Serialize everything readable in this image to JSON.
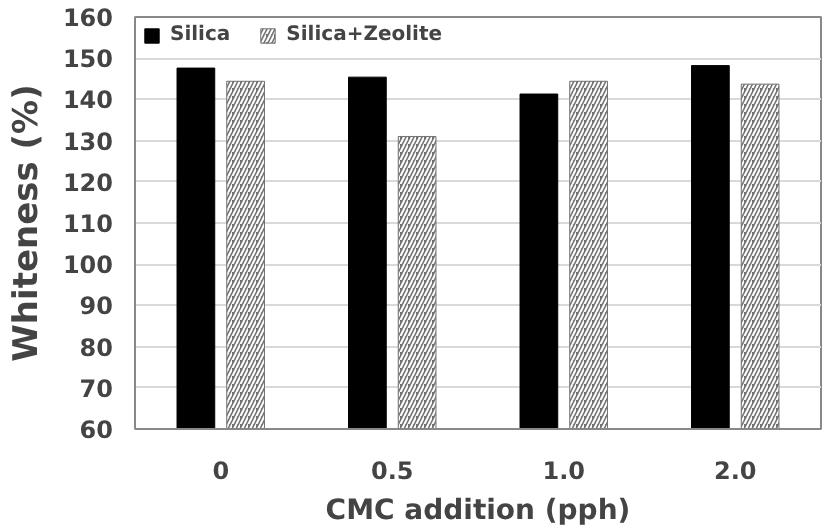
{
  "chart_data": {
    "type": "bar",
    "xlabel": "CMC addition (pph)",
    "ylabel": "Whiteness (%)",
    "categories": [
      "0",
      "0.5",
      "1.0",
      "2.0"
    ],
    "series": [
      {
        "name": "Silica",
        "color": "#000000",
        "values": [
          147.6,
          145.4,
          141.3,
          148.2
        ]
      },
      {
        "name": "Silica+Zeolite",
        "color": "#737373",
        "values": [
          144.4,
          131,
          144.4,
          143.7
        ]
      }
    ],
    "ylim": [
      60,
      160
    ],
    "yticks": [
      60,
      70,
      80,
      90,
      100,
      110,
      120,
      130,
      140,
      150,
      160
    ],
    "grid": "y",
    "legend": "top left"
  }
}
